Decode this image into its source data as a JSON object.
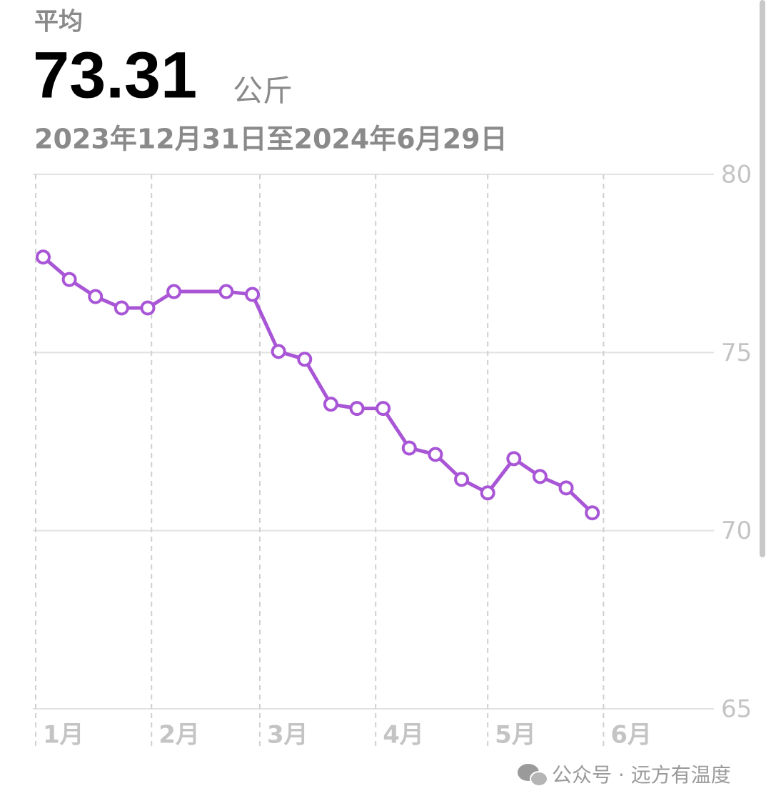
{
  "header": {
    "label": "平均",
    "value": "73.31",
    "unit": "公斤",
    "range": "2023年12月31日至2024年6月29日"
  },
  "chart_data": {
    "type": "line",
    "x": [
      2,
      9,
      16,
      23,
      30,
      37,
      51,
      58,
      65,
      72,
      79,
      86,
      93,
      100,
      107,
      114,
      121,
      128,
      135,
      142,
      149
    ],
    "series": [
      {
        "color": "#a855d6",
        "values": [
          77.68,
          77.05,
          76.57,
          76.25,
          76.25,
          76.71,
          76.71,
          76.63,
          75.03,
          74.81,
          73.55,
          73.43,
          73.43,
          72.32,
          72.14,
          71.44,
          71.06,
          72.02,
          71.52,
          71.2,
          70.5
        ]
      }
    ],
    "xlim": [
      0,
      181
    ],
    "xticks": [
      {
        "value": 0,
        "label": "1月"
      },
      {
        "value": 31,
        "label": "2月"
      },
      {
        "value": 60,
        "label": "3月"
      },
      {
        "value": 91,
        "label": "4月"
      },
      {
        "value": 121,
        "label": "5月"
      },
      {
        "value": 152,
        "label": "6月"
      }
    ],
    "ylim": [
      65,
      80
    ],
    "yticks": [
      65,
      70,
      75,
      80
    ],
    "grid": true
  },
  "watermark": "公众号 · 远方有温度"
}
